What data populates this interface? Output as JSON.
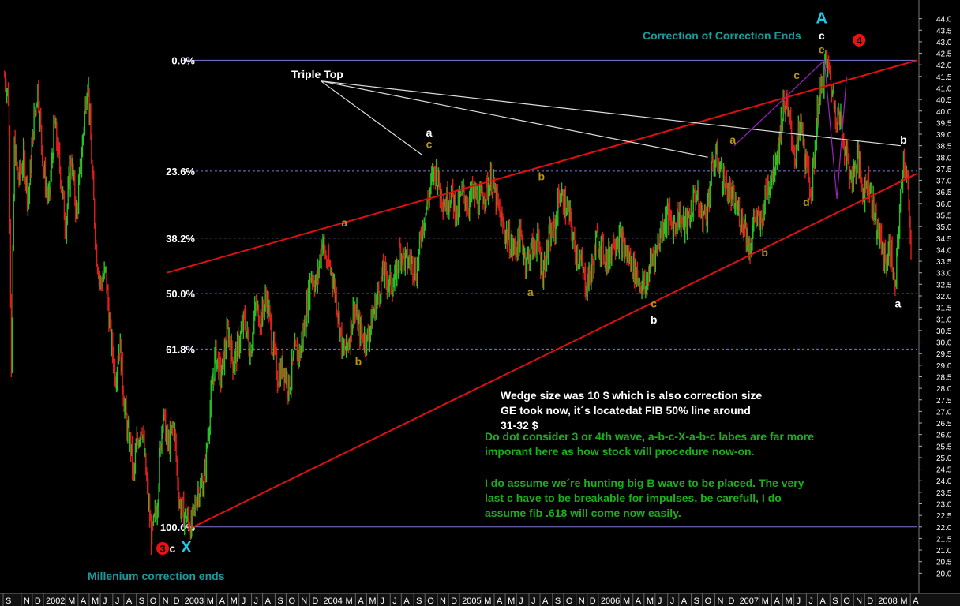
{
  "chart_data": {
    "type": "candlestick",
    "title": "",
    "xlabel": "",
    "ylabel": "",
    "ylim": [
      19.5,
      44.5
    ],
    "xlim": [
      2001.71,
      2008.3
    ],
    "grid": false,
    "y_ticks": [
      20.0,
      20.5,
      21.0,
      21.5,
      22.0,
      22.5,
      23.0,
      23.5,
      24.0,
      24.5,
      25.0,
      25.5,
      26.0,
      26.5,
      27.0,
      27.5,
      28.0,
      28.5,
      29.0,
      29.5,
      30.0,
      30.5,
      31.0,
      31.5,
      32.0,
      32.5,
      33.0,
      33.5,
      34.0,
      34.5,
      35.0,
      35.5,
      36.0,
      36.5,
      37.0,
      37.5,
      38.0,
      38.5,
      39.0,
      39.5,
      40.0,
      40.5,
      41.0,
      41.5,
      42.0,
      42.5,
      43.0,
      43.5,
      44.0
    ],
    "x_ticks": [
      {
        "label": "S",
        "t": 2001.71
      },
      {
        "label": "N",
        "t": 2001.84
      },
      {
        "label": "D",
        "t": 2001.92
      },
      {
        "label": "2002",
        "t": 2002.0
      },
      {
        "label": "M",
        "t": 2002.16
      },
      {
        "label": "A",
        "t": 2002.25
      },
      {
        "label": "M",
        "t": 2002.33
      },
      {
        "label": "J",
        "t": 2002.41
      },
      {
        "label": "J",
        "t": 2002.5
      },
      {
        "label": "A",
        "t": 2002.58
      },
      {
        "label": "S",
        "t": 2002.67
      },
      {
        "label": "O",
        "t": 2002.75
      },
      {
        "label": "N",
        "t": 2002.84
      },
      {
        "label": "D",
        "t": 2002.92
      },
      {
        "label": "2003",
        "t": 2003.0
      },
      {
        "label": "M",
        "t": 2003.16
      },
      {
        "label": "A",
        "t": 2003.25
      },
      {
        "label": "M",
        "t": 2003.33
      },
      {
        "label": "J",
        "t": 2003.41
      },
      {
        "label": "J",
        "t": 2003.5
      },
      {
        "label": "A",
        "t": 2003.58
      },
      {
        "label": "S",
        "t": 2003.67
      },
      {
        "label": "O",
        "t": 2003.75
      },
      {
        "label": "N",
        "t": 2003.84
      },
      {
        "label": "D",
        "t": 2003.92
      },
      {
        "label": "2004",
        "t": 2004.0
      },
      {
        "label": "M",
        "t": 2004.16
      },
      {
        "label": "A",
        "t": 2004.25
      },
      {
        "label": "M",
        "t": 2004.33
      },
      {
        "label": "J",
        "t": 2004.41
      },
      {
        "label": "J",
        "t": 2004.5
      },
      {
        "label": "A",
        "t": 2004.58
      },
      {
        "label": "S",
        "t": 2004.67
      },
      {
        "label": "O",
        "t": 2004.75
      },
      {
        "label": "N",
        "t": 2004.84
      },
      {
        "label": "D",
        "t": 2004.92
      },
      {
        "label": "2005",
        "t": 2005.0
      },
      {
        "label": "M",
        "t": 2005.16
      },
      {
        "label": "A",
        "t": 2005.25
      },
      {
        "label": "M",
        "t": 2005.33
      },
      {
        "label": "J",
        "t": 2005.41
      },
      {
        "label": "J",
        "t": 2005.5
      },
      {
        "label": "A",
        "t": 2005.58
      },
      {
        "label": "S",
        "t": 2005.67
      },
      {
        "label": "O",
        "t": 2005.75
      },
      {
        "label": "N",
        "t": 2005.84
      },
      {
        "label": "D",
        "t": 2005.92
      },
      {
        "label": "2006",
        "t": 2006.0
      },
      {
        "label": "M",
        "t": 2006.16
      },
      {
        "label": "A",
        "t": 2006.25
      },
      {
        "label": "M",
        "t": 2006.33
      },
      {
        "label": "J",
        "t": 2006.41
      },
      {
        "label": "J",
        "t": 2006.5
      },
      {
        "label": "A",
        "t": 2006.58
      },
      {
        "label": "S",
        "t": 2006.67
      },
      {
        "label": "O",
        "t": 2006.75
      },
      {
        "label": "N",
        "t": 2006.84
      },
      {
        "label": "D",
        "t": 2006.92
      },
      {
        "label": "2007",
        "t": 2007.0
      },
      {
        "label": "M",
        "t": 2007.16
      },
      {
        "label": "A",
        "t": 2007.25
      },
      {
        "label": "M",
        "t": 2007.33
      },
      {
        "label": "J",
        "t": 2007.41
      },
      {
        "label": "J",
        "t": 2007.5
      },
      {
        "label": "A",
        "t": 2007.58
      },
      {
        "label": "S",
        "t": 2007.67
      },
      {
        "label": "O",
        "t": 2007.75
      },
      {
        "label": "N",
        "t": 2007.84
      },
      {
        "label": "D",
        "t": 2007.92
      },
      {
        "label": "2008",
        "t": 2008.0
      },
      {
        "label": "M",
        "t": 2008.16
      },
      {
        "label": "A",
        "t": 2008.25
      }
    ],
    "price_path": [
      [
        2001.72,
        41.5
      ],
      [
        2001.75,
        40.5
      ],
      [
        2001.77,
        28.5
      ],
      [
        2001.79,
        38.5
      ],
      [
        2001.82,
        37.0
      ],
      [
        2001.86,
        38.0
      ],
      [
        2001.89,
        36.0
      ],
      [
        2001.93,
        39.5
      ],
      [
        2001.96,
        41.0
      ],
      [
        2002.0,
        37.5
      ],
      [
        2002.04,
        36.0
      ],
      [
        2002.08,
        39.5
      ],
      [
        2002.12,
        37.5
      ],
      [
        2002.16,
        35.0
      ],
      [
        2002.2,
        38.0
      ],
      [
        2002.24,
        35.5
      ],
      [
        2002.28,
        38.5
      ],
      [
        2002.32,
        41.5
      ],
      [
        2002.35,
        37.5
      ],
      [
        2002.38,
        34.0
      ],
      [
        2002.41,
        32.5
      ],
      [
        2002.45,
        33.0
      ],
      [
        2002.48,
        30.5
      ],
      [
        2002.52,
        28.5
      ],
      [
        2002.55,
        30.0
      ],
      [
        2002.58,
        27.5
      ],
      [
        2002.61,
        26.0
      ],
      [
        2002.63,
        25.5
      ],
      [
        2002.65,
        24.0
      ],
      [
        2002.67,
        25.5
      ],
      [
        2002.71,
        26.5
      ],
      [
        2002.75,
        23.5
      ],
      [
        2002.78,
        21.5
      ],
      [
        2002.82,
        23.0
      ],
      [
        2002.86,
        27.0
      ],
      [
        2002.9,
        25.5
      ],
      [
        2002.94,
        26.5
      ],
      [
        2002.98,
        23.0
      ],
      [
        2003.02,
        22.5
      ],
      [
        2003.07,
        22.0
      ],
      [
        2003.11,
        23.5
      ],
      [
        2003.16,
        24.0
      ],
      [
        2003.2,
        27.0
      ],
      [
        2003.24,
        29.5
      ],
      [
        2003.28,
        28.5
      ],
      [
        2003.33,
        30.5
      ],
      [
        2003.37,
        29.0
      ],
      [
        2003.41,
        30.0
      ],
      [
        2003.45,
        31.0
      ],
      [
        2003.49,
        29.5
      ],
      [
        2003.53,
        31.5
      ],
      [
        2003.57,
        31.0
      ],
      [
        2003.61,
        32.0
      ],
      [
        2003.65,
        30.0
      ],
      [
        2003.69,
        28.5
      ],
      [
        2003.73,
        29.0
      ],
      [
        2003.77,
        28.0
      ],
      [
        2003.81,
        29.5
      ],
      [
        2003.85,
        29.5
      ],
      [
        2003.89,
        31.0
      ],
      [
        2003.93,
        33.0
      ],
      [
        2003.97,
        32.5
      ],
      [
        2004.01,
        34.5
      ],
      [
        2004.04,
        33.5
      ],
      [
        2004.08,
        33.0
      ],
      [
        2004.12,
        31.5
      ],
      [
        2004.16,
        29.5
      ],
      [
        2004.2,
        30.0
      ],
      [
        2004.24,
        31.5
      ],
      [
        2004.28,
        30.5
      ],
      [
        2004.33,
        30.0
      ],
      [
        2004.37,
        31.0
      ],
      [
        2004.41,
        32.0
      ],
      [
        2004.45,
        33.0
      ],
      [
        2004.49,
        32.5
      ],
      [
        2004.53,
        32.5
      ],
      [
        2004.57,
        34.0
      ],
      [
        2004.61,
        33.5
      ],
      [
        2004.65,
        33.5
      ],
      [
        2004.69,
        33.0
      ],
      [
        2004.73,
        35.0
      ],
      [
        2004.77,
        36.0
      ],
      [
        2004.8,
        37.0
      ],
      [
        2004.83,
        37.5
      ],
      [
        2004.86,
        36.5
      ],
      [
        2004.9,
        36.0
      ],
      [
        2004.94,
        36.5
      ],
      [
        2004.98,
        35.5
      ],
      [
        2005.02,
        36.5
      ],
      [
        2005.06,
        36.0
      ],
      [
        2005.1,
        36.5
      ],
      [
        2005.14,
        36.0
      ],
      [
        2005.18,
        36.5
      ],
      [
        2005.23,
        37.0
      ],
      [
        2005.27,
        36.0
      ],
      [
        2005.31,
        35.0
      ],
      [
        2005.35,
        34.5
      ],
      [
        2005.39,
        34.0
      ],
      [
        2005.44,
        34.5
      ],
      [
        2005.48,
        33.5
      ],
      [
        2005.52,
        34.0
      ],
      [
        2005.56,
        34.5
      ],
      [
        2005.6,
        33.0
      ],
      [
        2005.65,
        34.5
      ],
      [
        2005.69,
        35.0
      ],
      [
        2005.72,
        36.5
      ],
      [
        2005.75,
        36.0
      ],
      [
        2005.79,
        35.5
      ],
      [
        2005.83,
        34.0
      ],
      [
        2005.87,
        33.5
      ],
      [
        2005.91,
        32.5
      ],
      [
        2005.95,
        33.0
      ],
      [
        2005.99,
        34.5
      ],
      [
        2006.03,
        34.0
      ],
      [
        2006.07,
        33.5
      ],
      [
        2006.11,
        34.5
      ],
      [
        2006.15,
        34.5
      ],
      [
        2006.19,
        34.0
      ],
      [
        2006.23,
        33.5
      ],
      [
        2006.27,
        33.0
      ],
      [
        2006.31,
        32.5
      ],
      [
        2006.34,
        32.3
      ],
      [
        2006.38,
        33.5
      ],
      [
        2006.42,
        34.0
      ],
      [
        2006.46,
        35.0
      ],
      [
        2006.5,
        35.5
      ],
      [
        2006.54,
        35.0
      ],
      [
        2006.58,
        35.5
      ],
      [
        2006.62,
        35.0
      ],
      [
        2006.66,
        35.5
      ],
      [
        2006.7,
        36.5
      ],
      [
        2006.74,
        35.5
      ],
      [
        2006.78,
        35.5
      ],
      [
        2006.82,
        37.5
      ],
      [
        2006.86,
        38.0
      ],
      [
        2006.9,
        37.0
      ],
      [
        2006.94,
        36.5
      ],
      [
        2006.98,
        36.0
      ],
      [
        2007.02,
        35.5
      ],
      [
        2007.06,
        35.0
      ],
      [
        2007.09,
        34.0
      ],
      [
        2007.13,
        35.5
      ],
      [
        2007.17,
        35.0
      ],
      [
        2007.21,
        36.5
      ],
      [
        2007.26,
        37.5
      ],
      [
        2007.3,
        38.5
      ],
      [
        2007.34,
        40.5
      ],
      [
        2007.38,
        39.5
      ],
      [
        2007.42,
        38.0
      ],
      [
        2007.46,
        39.5
      ],
      [
        2007.5,
        37.5
      ],
      [
        2007.54,
        36.5
      ],
      [
        2007.58,
        40.0
      ],
      [
        2007.61,
        41.0
      ],
      [
        2007.64,
        42.2
      ],
      [
        2007.67,
        41.5
      ],
      [
        2007.71,
        40.0
      ],
      [
        2007.75,
        39.5
      ],
      [
        2007.79,
        38.0
      ],
      [
        2007.83,
        37.0
      ],
      [
        2007.87,
        38.0
      ],
      [
        2007.91,
        36.5
      ],
      [
        2007.95,
        37.0
      ],
      [
        2007.99,
        35.5
      ],
      [
        2008.03,
        34.5
      ],
      [
        2008.07,
        33.5
      ],
      [
        2008.11,
        34.0
      ],
      [
        2008.14,
        32.0
      ],
      [
        2008.17,
        35.5
      ],
      [
        2008.2,
        38.0
      ],
      [
        2008.23,
        37.0
      ],
      [
        2008.26,
        32.5
      ]
    ],
    "fib_levels": [
      {
        "label": "0.0%",
        "value": 42.2
      },
      {
        "label": "23.6%",
        "value": 37.4
      },
      {
        "label": "38.2%",
        "value": 34.5
      },
      {
        "label": "50.0%",
        "value": 32.1
      },
      {
        "label": "61.8%",
        "value": 29.7
      },
      {
        "label": "100.0%",
        "value": 22.0
      }
    ],
    "trendlines": [
      {
        "kind": "upper-wedge",
        "color": "#e01010",
        "from": [
          2002.89,
          33.0
        ],
        "to": [
          2008.3,
          42.2
        ]
      },
      {
        "kind": "lower-wedge",
        "color": "#e01010",
        "from": [
          2003.08,
          22.0
        ],
        "to": [
          2008.3,
          37.3
        ]
      },
      {
        "kind": "triple-top-pointer",
        "color": "#dddddd",
        "from": [
          2004.0,
          41.3
        ],
        "to": [
          2004.73,
          38.1
        ]
      },
      {
        "kind": "triple-top-pointer",
        "color": "#dddddd",
        "from": [
          2004.0,
          41.3
        ],
        "to": [
          2006.79,
          38.0
        ]
      },
      {
        "kind": "triple-top-pointer",
        "color": "#dddddd",
        "from": [
          2004.0,
          41.3
        ],
        "to": [
          2008.18,
          38.5
        ]
      },
      {
        "kind": "wave-path",
        "color": "#a020c0",
        "from": [
          2006.98,
          38.5
        ],
        "to": [
          2007.63,
          42.2
        ]
      },
      {
        "kind": "wave-path",
        "color": "#a020c0",
        "from": [
          2007.63,
          42.2
        ],
        "to": [
          2007.72,
          36.2
        ]
      },
      {
        "kind": "wave-path",
        "color": "#a020c0",
        "from": [
          2007.72,
          36.2
        ],
        "to": [
          2007.79,
          41.5
        ]
      }
    ],
    "wave_labels": [
      {
        "text": "a",
        "t": 2004.78,
        "p": 38.9,
        "color": "#ffffff"
      },
      {
        "text": "c",
        "t": 2004.78,
        "p": 38.4,
        "color": "#b8941c"
      },
      {
        "text": "a",
        "t": 2004.17,
        "p": 35.0,
        "color": "#b8941c"
      },
      {
        "text": "b",
        "t": 2004.27,
        "p": 29.0,
        "color": "#b8941c"
      },
      {
        "text": "b",
        "t": 2005.59,
        "p": 37.0,
        "color": "#b8941c"
      },
      {
        "text": "a",
        "t": 2005.51,
        "p": 32.0,
        "color": "#b8941c"
      },
      {
        "text": "c",
        "t": 2006.4,
        "p": 31.5,
        "color": "#b8941c"
      },
      {
        "text": "b",
        "t": 2006.4,
        "p": 30.8,
        "color": "#ffffff"
      },
      {
        "text": "a",
        "t": 2006.97,
        "p": 38.6,
        "color": "#b8941c"
      },
      {
        "text": "b",
        "t": 2007.2,
        "p": 33.7,
        "color": "#b8941c"
      },
      {
        "text": "c",
        "t": 2007.43,
        "p": 41.4,
        "color": "#b8941c"
      },
      {
        "text": "d",
        "t": 2007.5,
        "p": 35.9,
        "color": "#b8941c"
      },
      {
        "text": "e",
        "t": 2007.61,
        "p": 42.5,
        "color": "#b8941c"
      },
      {
        "text": "c",
        "t": 2007.61,
        "p": 43.1,
        "color": "#ffffff"
      },
      {
        "text": "A",
        "t": 2007.61,
        "p": 43.8,
        "color": "#1ec8e8"
      },
      {
        "text": "b",
        "t": 2008.2,
        "p": 38.6,
        "color": "#ffffff"
      },
      {
        "text": "a",
        "t": 2008.16,
        "p": 31.5,
        "color": "#ffffff"
      },
      {
        "text": "c",
        "t": 2002.93,
        "p": 20.9,
        "color": "#ffffff"
      },
      {
        "text": "X",
        "t": 2003.03,
        "p": 20.9,
        "color": "#1ec8e8"
      }
    ],
    "circle_markers": [
      {
        "text": "3",
        "t": 2002.86,
        "p": 20.9
      },
      {
        "text": "4",
        "t": 2007.88,
        "p": 42.9
      }
    ],
    "annotations": {
      "triple_top": "Triple Top",
      "correction_ends": "Correction of Correction Ends",
      "millenium": "Millenium correction ends",
      "wedge_note": "Wedge size was 10 $ which is also correction size GE took now, it´s locatedat FIB 50% line around 31-32 $",
      "wave_note_1": "Do dot consider 3 or 4th wave, a-b-c-X-a-b-c labes are far more imporant here as how stock will procedure now-on.",
      "wave_note_2": "I do assume we´re hunting big B wave to be placed. The very last c have to be breakable for impulses, be carefull, I do assume fib .618 will come now easily."
    },
    "colors": {
      "background": "#000000",
      "up_bar": "#22c322",
      "down_bar": "#e21c1c",
      "fib_line": "#7a7adc",
      "axis_text": "#ffffff",
      "caption": "#1a9a9a",
      "marker": "#ee1111"
    }
  }
}
